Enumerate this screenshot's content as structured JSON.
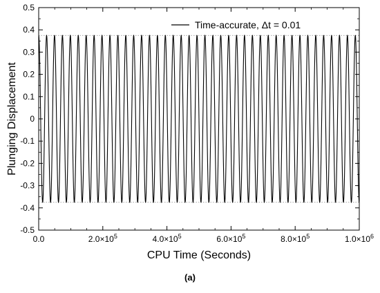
{
  "chart_data": {
    "type": "line",
    "xlabel": "CPU Time (Seconds)",
    "ylabel": "Plunging Displacement",
    "xlim": [
      0,
      1000000
    ],
    "ylim": [
      -0.5,
      0.5
    ],
    "grid": false,
    "legend_position": "top-right",
    "x_ticks": [
      {
        "value": 0,
        "label": "0.0"
      },
      {
        "value": 200000,
        "label": "2.0×10",
        "exp": "5"
      },
      {
        "value": 400000,
        "label": "4.0×10",
        "exp": "5"
      },
      {
        "value": 600000,
        "label": "6.0×10",
        "exp": "5"
      },
      {
        "value": 800000,
        "label": "8.0×10",
        "exp": "5"
      },
      {
        "value": 1000000,
        "label": "1.0×10",
        "exp": "6"
      }
    ],
    "y_ticks": [
      {
        "value": 0.5,
        "label": "0.5"
      },
      {
        "value": 0.4,
        "label": "0.4"
      },
      {
        "value": 0.3,
        "label": "0.3"
      },
      {
        "value": 0.2,
        "label": "0.2"
      },
      {
        "value": 0.1,
        "label": "0.1"
      },
      {
        "value": 0,
        "label": "0"
      },
      {
        "value": -0.1,
        "label": "-0.1"
      },
      {
        "value": -0.2,
        "label": "-0.2"
      },
      {
        "value": -0.3,
        "label": "-0.3"
      },
      {
        "value": -0.4,
        "label": "-0.4"
      },
      {
        "value": -0.5,
        "label": "-0.5"
      }
    ],
    "series": [
      {
        "name": "Time-accurate, Δt = 0.01",
        "color": "#000000",
        "kind": "sinusoid",
        "amplitude": 0.375,
        "cycles": 40.5,
        "x_start": 0,
        "x_end": 1000000,
        "phase": "cosine"
      }
    ],
    "reference_lines": [
      {
        "y": 0.375,
        "style": "dotted",
        "color": "#888888"
      },
      {
        "y": -0.375,
        "style": "dotted",
        "color": "#888888"
      }
    ]
  },
  "caption": "(a)",
  "colors": {
    "axes": "#000000",
    "reference": "#888888",
    "background": "#ffffff"
  }
}
